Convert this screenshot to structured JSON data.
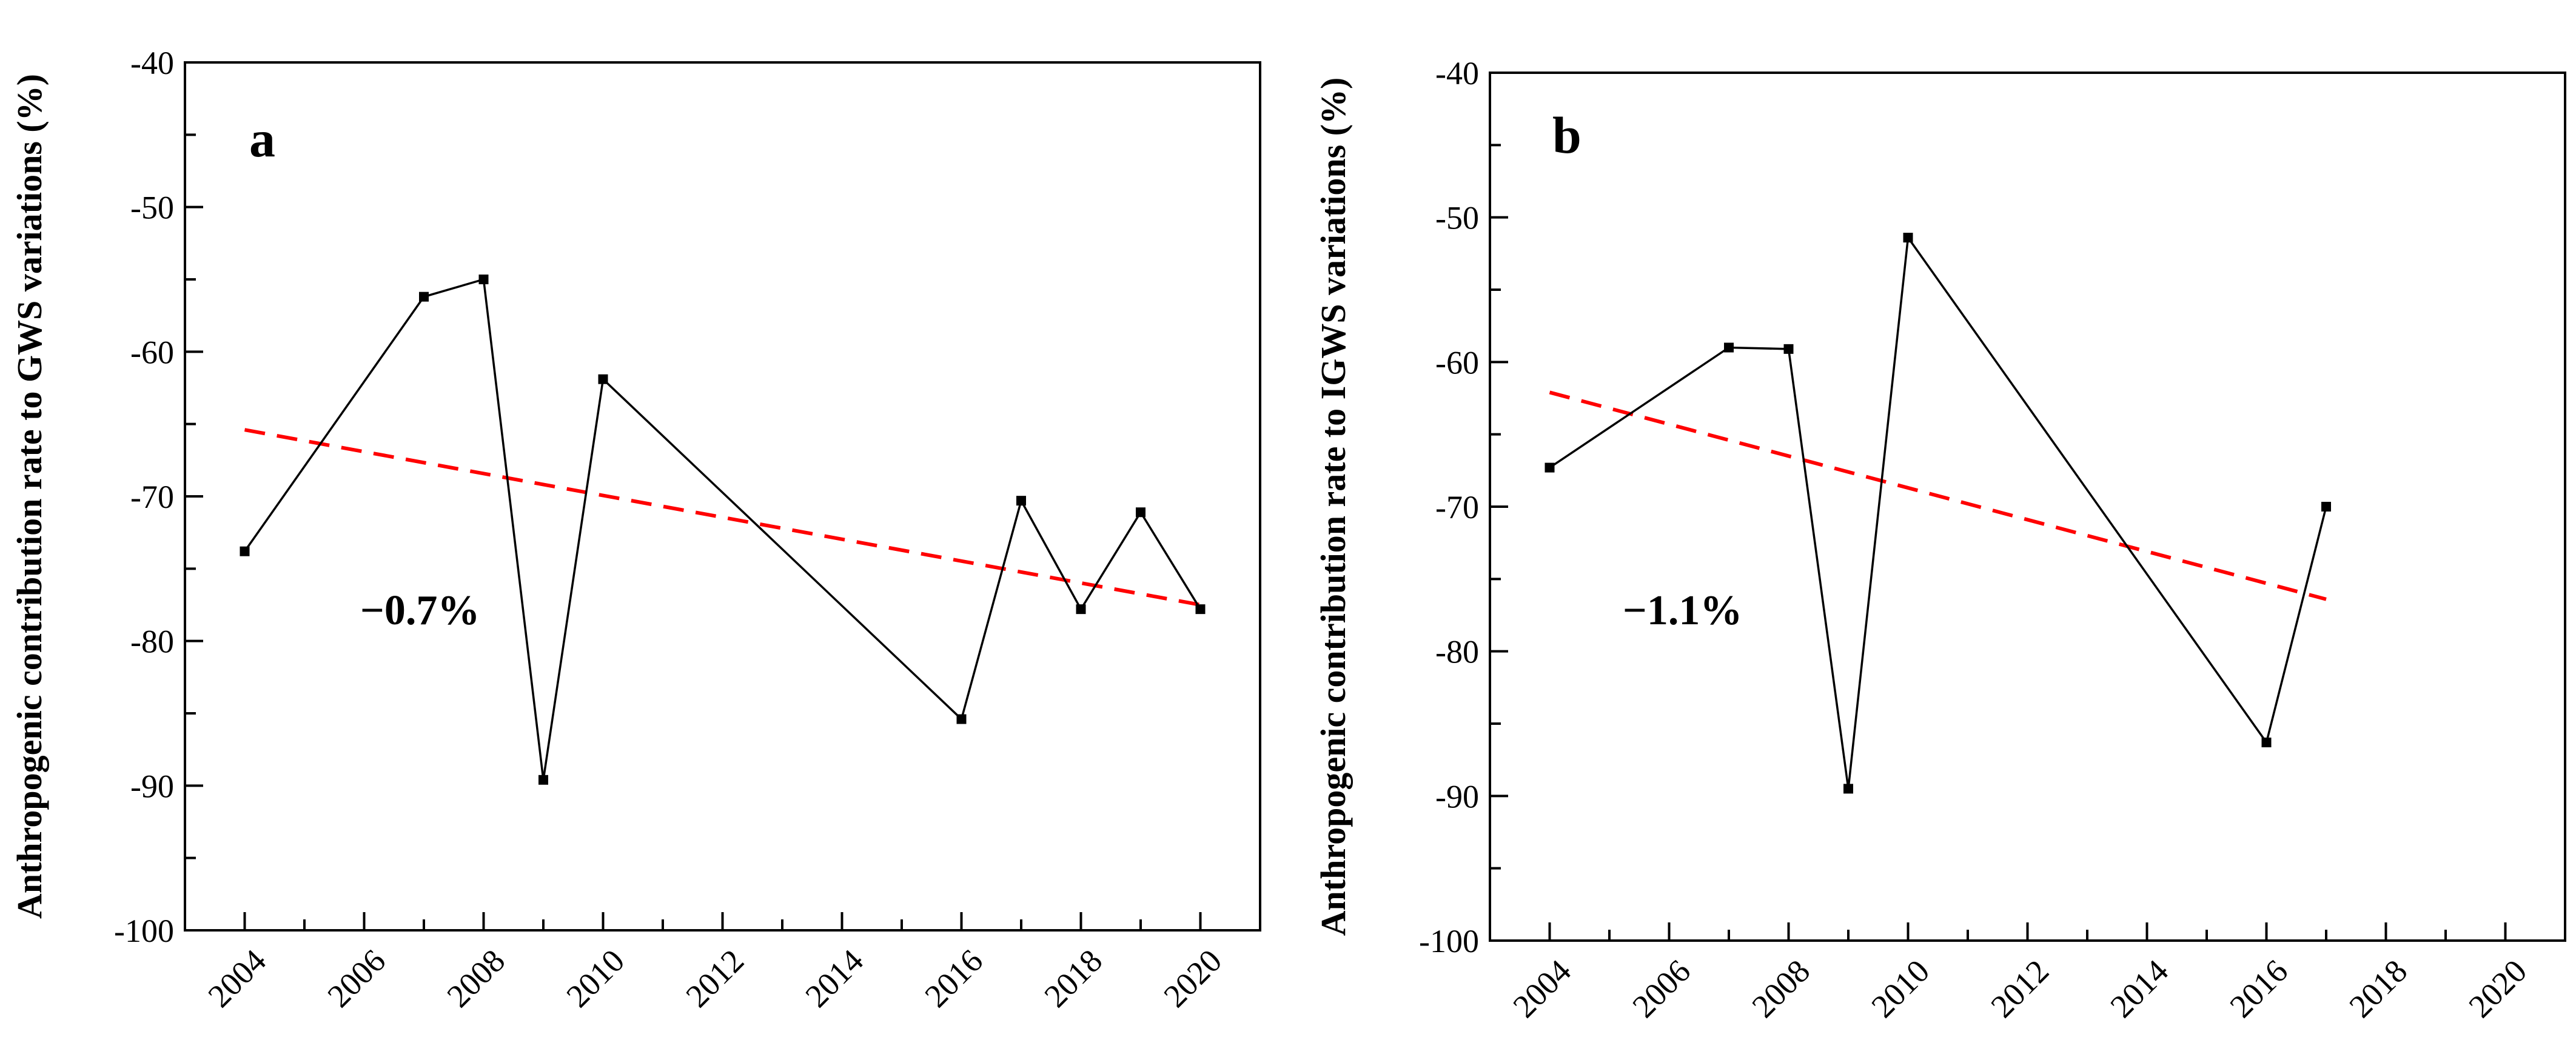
{
  "chart_data": [
    {
      "type": "line",
      "panel_label": "a",
      "ylabel": "Anthropogenic contribution rate to GWS variations (%)",
      "xlabel": "",
      "xlim": [
        2003,
        2021
      ],
      "ylim": [
        -100,
        -40
      ],
      "xticks": [
        2004,
        2006,
        2008,
        2010,
        2012,
        2014,
        2016,
        2018,
        2020
      ],
      "yticks": [
        -40,
        -50,
        -60,
        -70,
        -80,
        -90,
        -100
      ],
      "x": [
        2004,
        2007,
        2008,
        2009,
        2010,
        2016,
        2017,
        2018,
        2019,
        2020
      ],
      "values": [
        -73.8,
        -56.2,
        -55.0,
        -89.6,
        -61.9,
        -85.4,
        -70.3,
        -77.8,
        -71.1,
        -77.8
      ],
      "trend": {
        "x": [
          2004,
          2020
        ],
        "y": [
          -65.4,
          -77.5
        ],
        "color": "#ff0000"
      },
      "annotation": "−0.7%"
    },
    {
      "type": "line",
      "panel_label": "b",
      "ylabel": "Anthropogenic contribution rate to IGWS variations (%)",
      "xlabel": "",
      "xlim": [
        2003,
        2021
      ],
      "ylim": [
        -100,
        -40
      ],
      "xticks": [
        2004,
        2006,
        2008,
        2010,
        2012,
        2014,
        2016,
        2018,
        2020
      ],
      "yticks": [
        -40,
        -50,
        -60,
        -70,
        -80,
        -90,
        -100
      ],
      "x": [
        2004,
        2007,
        2008,
        2009,
        2010,
        2016,
        2017
      ],
      "values": [
        -67.3,
        -59.0,
        -59.1,
        -89.5,
        -51.4,
        -86.3,
        -70.0
      ],
      "trend": {
        "x": [
          2004,
          2017
        ],
        "y": [
          -62.1,
          -76.4
        ],
        "color": "#ff0000"
      },
      "annotation": "−1.1%"
    }
  ]
}
